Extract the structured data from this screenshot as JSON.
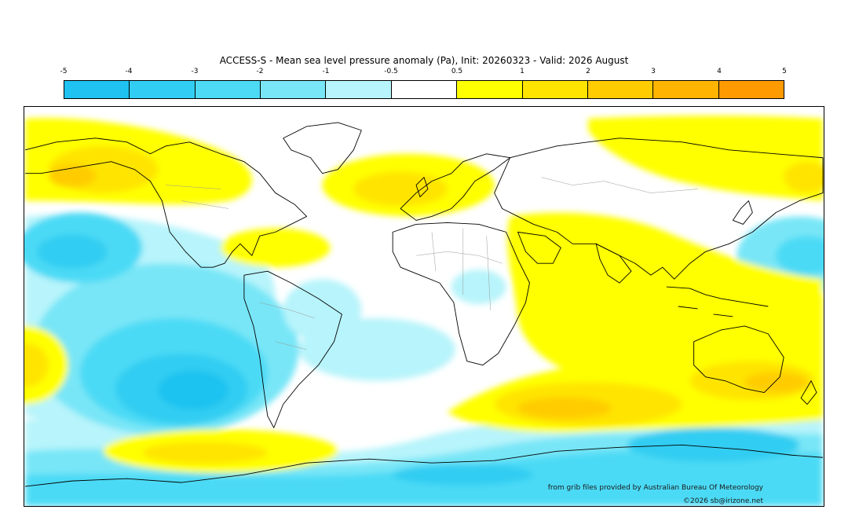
{
  "title": "ACCESS-S - Mean sea level pressure anomaly (Pa), Init: 20260323 - Valid: 2026 August",
  "colorbar": {
    "ticks": [
      "-5",
      "-4",
      "-3",
      "-2",
      "-1",
      "-0.5",
      "0.5",
      "1",
      "2",
      "3",
      "4",
      "5"
    ],
    "colors": [
      "#1fc2f0",
      "#32cdf2",
      "#4cdaf5",
      "#78e6f7",
      "#b7f4fb",
      "#ffffff",
      "#ffff00",
      "#ffe400",
      "#ffcc00",
      "#ffb400",
      "#ff9a00"
    ]
  },
  "palette": {
    "land_outline": "#000000",
    "borders": "#9a9a9a"
  },
  "credits": {
    "source": "from grib files provided by Australian Bureau Of Meteorology",
    "copyright": "©2026 sb@irizone.net"
  }
}
